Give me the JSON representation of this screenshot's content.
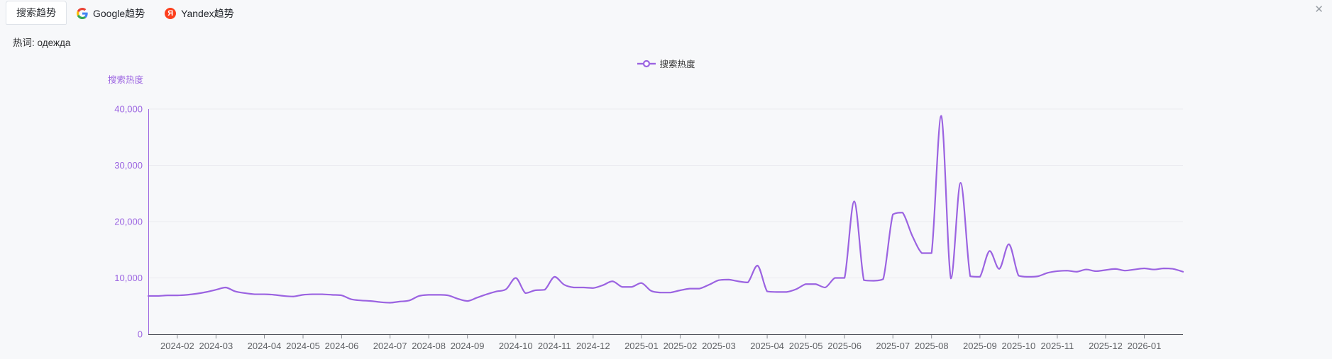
{
  "window": {
    "icons": {
      "close": "✕"
    }
  },
  "tabs": [
    {
      "label": "搜索趋势",
      "active": true
    },
    {
      "label": "Google趋势",
      "icon": "google-logo"
    },
    {
      "label": "Yandex趋势",
      "icon": "yandex-logo",
      "glyph": "Я"
    }
  ],
  "hot_word": {
    "label": "热词:",
    "value": "одежда"
  },
  "legend": {
    "position": "top-center",
    "items": [
      {
        "label": "搜索热度",
        "color": "#9b63e1"
      }
    ]
  },
  "chart_data": {
    "type": "line",
    "smooth": true,
    "grid_lines": "horizontal",
    "legend_position": "top-center",
    "y_axis": {
      "name": "搜索热度",
      "min": 0,
      "max": 40000,
      "tick_labels": [
        "0",
        "10,000",
        "20,000",
        "30,000",
        "40,000"
      ]
    },
    "x_axis": {
      "tick_labels": [
        "2024-02",
        "2024-03",
        "2024-04",
        "2024-05",
        "2024-06",
        "2024-07",
        "2024-08",
        "2024-09",
        "2024-10",
        "2024-11",
        "2024-12",
        "2025-01",
        "2025-02",
        "2025-03",
        "2025-04",
        "2025-05",
        "2025-06",
        "2025-07",
        "2025-08",
        "2025-09",
        "2025-10",
        "2025-11",
        "2025-12",
        "2026-01"
      ],
      "tick_indices": [
        3,
        7,
        12,
        16,
        20,
        25,
        29,
        33,
        38,
        42,
        46,
        51,
        55,
        59,
        64,
        68,
        72,
        77,
        81,
        86,
        90,
        94,
        99,
        103
      ]
    },
    "series": [
      {
        "name": "搜索热度",
        "color": "#9b63e1",
        "start_date": "2024-01-14",
        "interval_days": 7,
        "values": [
          6800,
          6800,
          6900,
          6900,
          7000,
          7200,
          7500,
          7900,
          8300,
          7600,
          7300,
          7100,
          7100,
          7000,
          6800,
          6700,
          7000,
          7100,
          7100,
          7000,
          6900,
          6200,
          6000,
          5900,
          5700,
          5600,
          5800,
          6000,
          6800,
          7000,
          7000,
          6900,
          6300,
          5900,
          6500,
          7100,
          7600,
          8000,
          10000,
          7300,
          7800,
          7900,
          10200,
          8800,
          8300,
          8300,
          8200,
          8700,
          9400,
          8400,
          8400,
          9100,
          7700,
          7400,
          7400,
          7800,
          8100,
          8100,
          8800,
          9600,
          9700,
          9400,
          9200,
          12200,
          7600,
          7500,
          7500,
          8000,
          8900,
          8900,
          8300,
          10000,
          10000,
          23600,
          9600,
          9500,
          9800,
          21300,
          21600,
          17500,
          14400,
          14400,
          38800,
          9900,
          26900,
          10300,
          10200,
          14800,
          11600,
          16000,
          10400,
          10200,
          10300,
          10900,
          11200,
          11300,
          11100,
          11500,
          11200,
          11400,
          11600,
          11300,
          11500,
          11700,
          11500,
          11700,
          11600,
          11100
        ]
      }
    ],
    "colors": {
      "axis_purple": "#9b63e1",
      "grid": "#ebebf0",
      "x_axis_line": "#4f525a",
      "x_tick": "#8a8d93",
      "x_label": "#606266"
    }
  }
}
